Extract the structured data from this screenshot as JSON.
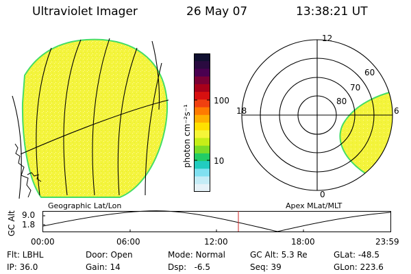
{
  "header": {
    "instrument": "Ultraviolet Imager",
    "date": "26 May 07",
    "time": "13:38:21 UT"
  },
  "colorbar": {
    "unit_label": "photon cm⁻²s⁻¹",
    "tick_labels": [
      "100",
      "10"
    ],
    "colors": [
      "#101030",
      "#2a0a40",
      "#4a0050",
      "#7a0035",
      "#a8001a",
      "#d81010",
      "#f04010",
      "#ff7a00",
      "#ffb000",
      "#ffe000",
      "#f6f638",
      "#c6ee18",
      "#7adc28",
      "#22cc66",
      "#22ccc0",
      "#80e0f0",
      "#c4ecf6",
      "#e6f2f8"
    ]
  },
  "left_panel": {
    "caption": "Geographic Lat/Lon",
    "fill_color": "#f4f43c",
    "edge_color": "#44dd66"
  },
  "right_panel": {
    "caption": "Apex MLat/MLT",
    "mlt_labels": {
      "top": "12",
      "left": "18",
      "right": "6",
      "bottom": "0"
    },
    "mlat_labels": [
      "60",
      "70",
      "80"
    ]
  },
  "timeline": {
    "axis_label": "GC Alt",
    "y_ticks": [
      "9.0",
      "1.8"
    ],
    "x_ticks": [
      "00:00",
      "06:00",
      "12:00",
      "18:00",
      "23:59"
    ],
    "marker_color": "#cc2222"
  },
  "info": {
    "row1": [
      "Flt: LBHL",
      "Door: Open",
      "Mode: Normal",
      "GC Alt: 5.3 Re",
      "GLat: -48.5"
    ],
    "row2": [
      "IP: 36.0",
      "Gain: 14",
      "Dsp:   -6.5",
      "Seq: 39",
      "GLon: 223.6"
    ]
  }
}
